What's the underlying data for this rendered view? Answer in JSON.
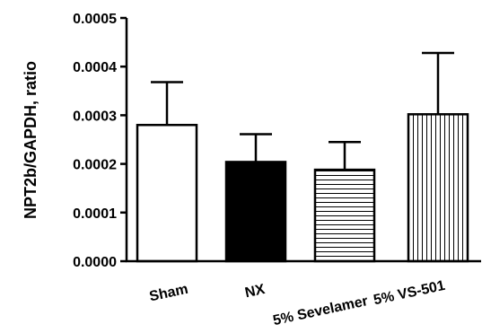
{
  "chart_data": {
    "type": "bar",
    "title": "",
    "xlabel": "",
    "ylabel": "NPT2b/GAPDH, ratio",
    "ylim": [
      0,
      0.0005
    ],
    "yticks": [
      "0.0000",
      "0.0001",
      "0.0002",
      "0.0003",
      "0.0004",
      "0.0005"
    ],
    "categories": [
      "Sham",
      "NX",
      "5% Sevelamer",
      "5% VS-501"
    ],
    "values": [
      0.00028,
      0.000204,
      0.000188,
      0.000302
    ],
    "errors_upper": [
      8.8e-05,
      5.7e-05,
      5.7e-05,
      0.000126
    ],
    "fills": [
      "none",
      "solid",
      "horizontal-lines",
      "vertical-lines"
    ],
    "colors": {
      "stroke": "#000000",
      "background": "#ffffff"
    },
    "grid": false,
    "legend": "none"
  }
}
